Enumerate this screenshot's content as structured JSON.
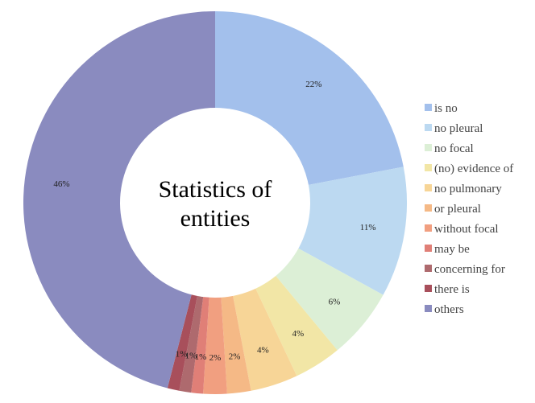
{
  "chart_data": {
    "type": "pie",
    "style": "donut",
    "title_lines": [
      "Statistics of",
      "entities"
    ],
    "categories": [
      "is no",
      "no pleural",
      "no focal",
      "(no) evidence of",
      "no pulmonary",
      "or pleural",
      "without focal",
      "may be",
      "concerning for",
      "there is",
      "others"
    ],
    "values": [
      22,
      11,
      6,
      4,
      4,
      2,
      2,
      1,
      1,
      1,
      46
    ],
    "labels": [
      "22%",
      "11%",
      "6%",
      "4%",
      "4%",
      "2%",
      "2%",
      "1%",
      "1%",
      "1%",
      "46%"
    ],
    "colors": [
      "#a3c0ec",
      "#bcd9f1",
      "#dcefd6",
      "#f2e6a6",
      "#f7d597",
      "#f5b986",
      "#f19f80",
      "#e07f77",
      "#ae6a6e",
      "#a84f5b",
      "#8a8bbf"
    ],
    "legend_position": "right"
  }
}
